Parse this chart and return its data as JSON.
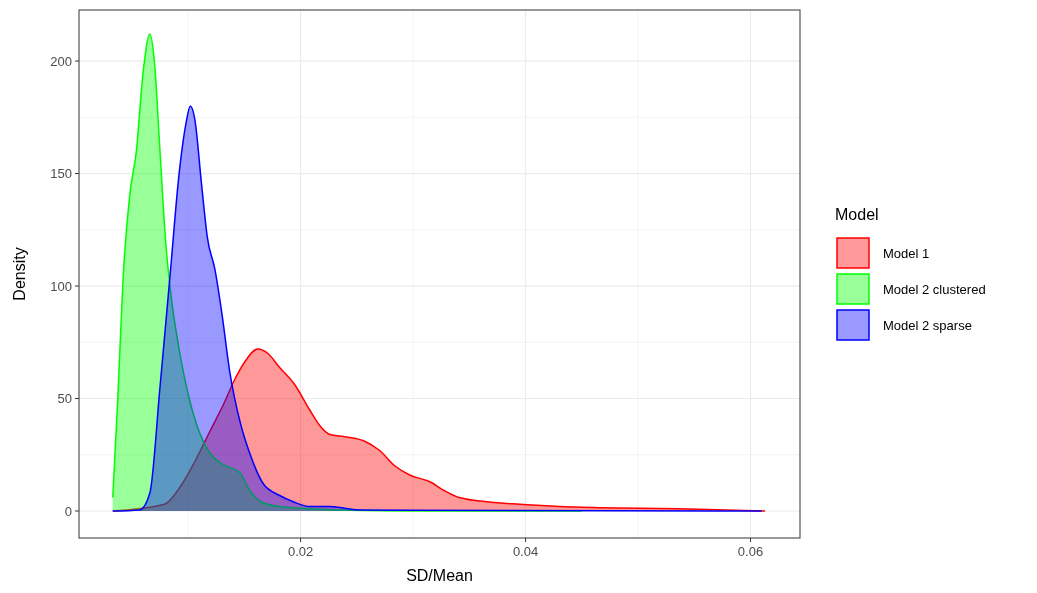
{
  "chart_data": {
    "type": "area",
    "xlabel": "SD/Mean",
    "ylabel": "Density",
    "legend_title": "Model",
    "legend": "right",
    "grid": true,
    "xlim": [
      0.0003,
      0.0644
    ],
    "ylim": [
      -12,
      222.7
    ],
    "xticks": [
      {
        "value": 0.01,
        "label": null
      },
      0.02,
      {
        "value": 0.03,
        "label": null
      },
      0.04,
      {
        "value": 0.05,
        "label": null
      },
      0.06
    ],
    "yticks": [
      0,
      {
        "value": 25,
        "label": null
      },
      50,
      {
        "value": 75,
        "label": null
      },
      100,
      {
        "value": 125,
        "label": null
      },
      150,
      {
        "value": 175,
        "label": null
      },
      200
    ],
    "series": [
      {
        "name": "Model 1",
        "color": "#ff0000",
        "x": [
          0.0033,
          0.0079,
          0.0092,
          0.0106,
          0.0119,
          0.0132,
          0.0141,
          0.015,
          0.0162,
          0.0171,
          0.0181,
          0.0195,
          0.0208,
          0.0217,
          0.0226,
          0.0239,
          0.0257,
          0.027,
          0.0284,
          0.0297,
          0.0315,
          0.0328,
          0.0341,
          0.0368,
          0.0395,
          0.043,
          0.0466,
          0.0537,
          0.0613
        ],
        "values": [
          0,
          3,
          10,
          22,
          35,
          48,
          58,
          66,
          72,
          70,
          64,
          56,
          45,
          38,
          34,
          33,
          31,
          27,
          20,
          16,
          13,
          9,
          6,
          4,
          3,
          2,
          1.5,
          1,
          0
        ]
      },
      {
        "name": "Model 2 clustered",
        "color": "#00ff00",
        "x": [
          0.0033,
          0.0037,
          0.0043,
          0.0048,
          0.0054,
          0.006,
          0.0066,
          0.007,
          0.0075,
          0.008,
          0.0085,
          0.0092,
          0.0101,
          0.011,
          0.0119,
          0.013,
          0.0146,
          0.0155,
          0.0165,
          0.0181,
          0.0208,
          0.0244,
          0.03,
          0.045
        ],
        "values": [
          6,
          45,
          110,
          140,
          160,
          195,
          212,
          200,
          160,
          120,
          95,
          72,
          50,
          35,
          26,
          21,
          17,
          9,
          4,
          2,
          1,
          0.3,
          0,
          0
        ]
      },
      {
        "name": "Model 2 sparse",
        "color": "#0000ff",
        "x": [
          0.0033,
          0.0057,
          0.0066,
          0.0075,
          0.0084,
          0.0092,
          0.0098,
          0.0102,
          0.0106,
          0.0112,
          0.0117,
          0.0124,
          0.013,
          0.0137,
          0.0146,
          0.0156,
          0.0167,
          0.0181,
          0.0194,
          0.0208,
          0.0226,
          0.0252,
          0.03,
          0.061
        ],
        "values": [
          0,
          0.5,
          8,
          55,
          105,
          150,
          172,
          180,
          174,
          145,
          122,
          107,
          88,
          62,
          40,
          24,
          12,
          7,
          4,
          2,
          2,
          0.5,
          0.3,
          0
        ]
      }
    ]
  }
}
